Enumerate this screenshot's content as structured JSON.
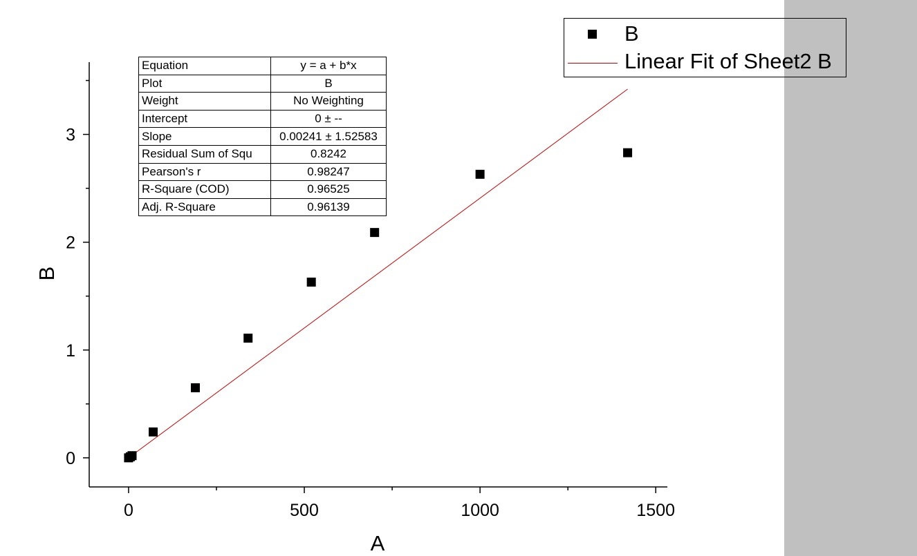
{
  "legend": {
    "scatter_label": "B",
    "fit_label": "Linear Fit of Sheet2 B"
  },
  "stats_table": {
    "rows": [
      {
        "key": "Equation",
        "value": "y = a + b*x"
      },
      {
        "key": "Plot",
        "value": "B"
      },
      {
        "key": "Weight",
        "value": "No Weighting"
      },
      {
        "key": "Intercept",
        "value": "0 ± --"
      },
      {
        "key": "Slope",
        "value": "0.00241 ± 1.52583"
      },
      {
        "key": "Residual Sum of Squ",
        "value": "0.8242"
      },
      {
        "key": "Pearson's r",
        "value": "0.98247"
      },
      {
        "key": "R-Square (COD)",
        "value": "0.96525"
      },
      {
        "key": "Adj. R-Square",
        "value": "0.96139"
      }
    ]
  },
  "chart_data": {
    "type": "scatter",
    "xlabel": "A",
    "ylabel": "B",
    "xlim": [
      -112,
      1533
    ],
    "ylim": [
      -0.27,
      3.67
    ],
    "xticks": [
      0,
      500,
      1000,
      1500
    ],
    "xtick_labels": [
      "0",
      "500",
      "1000",
      "1500"
    ],
    "yticks": [
      0,
      1,
      2,
      3
    ],
    "ytick_labels": [
      "0",
      "1",
      "2",
      "3"
    ],
    "x_minor_ticks": [
      250,
      750,
      1250
    ],
    "y_minor_ticks": [
      0.5,
      1.5,
      2.5,
      3.5
    ],
    "grid": false,
    "legend_position": "top-right",
    "series": [
      {
        "name": "B",
        "marker": "square",
        "color": "#000000",
        "x": [
          0,
          5,
          10,
          70,
          190,
          340,
          520,
          700,
          1000,
          1420
        ],
        "y": [
          0.0,
          0.01,
          0.02,
          0.24,
          0.65,
          1.11,
          1.63,
          2.09,
          2.63,
          2.83
        ]
      },
      {
        "name": "Linear Fit of Sheet2 B",
        "type": "line",
        "color": "#cc0000",
        "x": [
          0,
          1420
        ],
        "y": [
          0,
          3.42
        ]
      }
    ]
  }
}
